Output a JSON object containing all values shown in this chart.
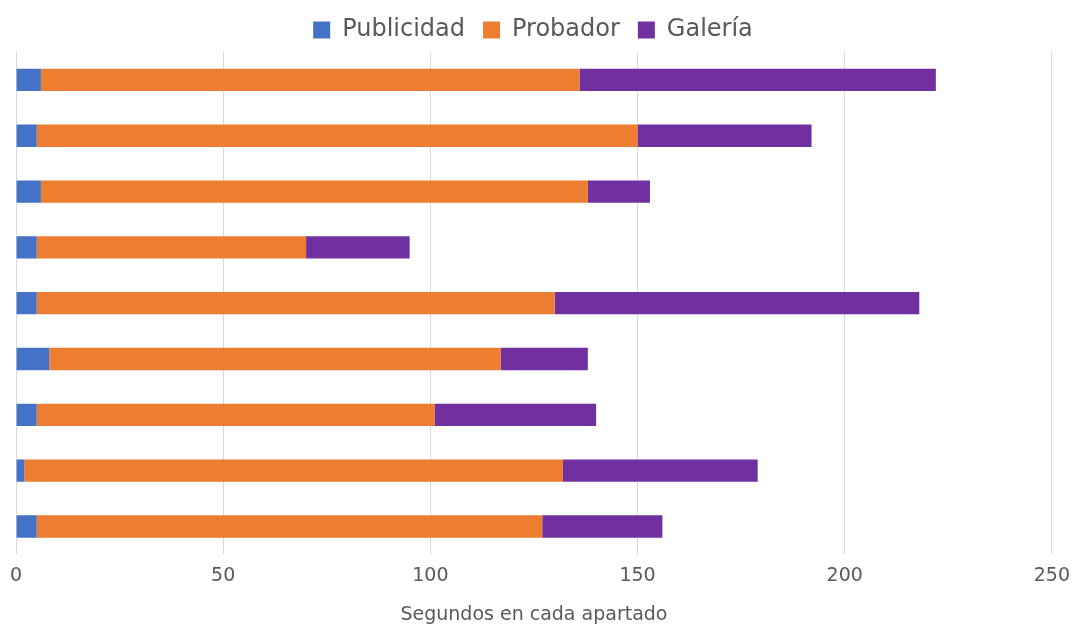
{
  "chart_data": {
    "type": "bar",
    "orientation": "horizontal",
    "stacked": true,
    "xlabel": "Segundos en cada apartado",
    "categories": [
      null,
      null,
      null,
      null,
      null,
      null,
      null,
      null,
      null
    ],
    "series": [
      {
        "name": "Publicidad",
        "color": "#4472c4",
        "values": [
          6,
          5,
          6,
          5,
          5,
          8,
          5,
          2,
          5
        ]
      },
      {
        "name": "Probador",
        "color": "#ed7d31",
        "values": [
          130,
          145,
          132,
          65,
          125,
          109,
          96,
          130,
          122
        ]
      },
      {
        "name": "Galería",
        "color": "#7030a0",
        "values": [
          86,
          42,
          15,
          25,
          88,
          21,
          39,
          47,
          29
        ]
      }
    ],
    "xlim": [
      0,
      250
    ],
    "xticks": [
      0,
      50,
      100,
      150,
      200,
      250
    ],
    "grid": "x",
    "legend": "top"
  }
}
